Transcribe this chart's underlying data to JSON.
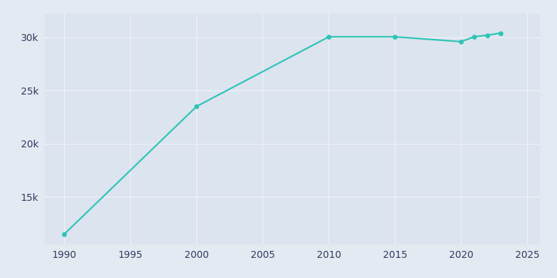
{
  "years": [
    1990,
    2000,
    2010,
    2015,
    2020,
    2021,
    2022,
    2023
  ],
  "population": [
    11500,
    23500,
    30046,
    30046,
    29590,
    30050,
    30200,
    30400
  ],
  "line_color": "#2EC4B6",
  "marker_color": "#2EC4B6",
  "fig_bg_color": "#e4eaf2",
  "plot_bg_color": "#dce4ef",
  "grid_color": "#f0f4f8",
  "tick_label_color": "#2d3b5e",
  "xlim": [
    1988.5,
    2026
  ],
  "ylim": [
    10500,
    32200
  ],
  "xticks": [
    1990,
    1995,
    2000,
    2005,
    2010,
    2015,
    2020,
    2025
  ],
  "yticks": [
    15000,
    20000,
    25000,
    30000
  ],
  "ytick_labels": [
    "15k",
    "20k",
    "25k",
    "30k"
  ],
  "linewidth": 1.6,
  "markersize": 4.5
}
